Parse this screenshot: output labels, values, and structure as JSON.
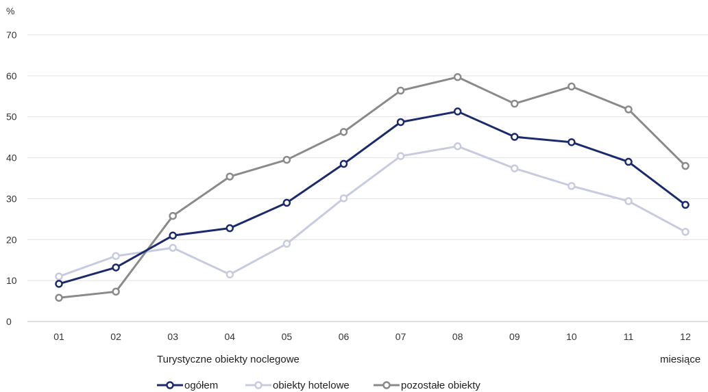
{
  "chart_data": {
    "type": "line",
    "y_unit": "%",
    "ylim": [
      0,
      70
    ],
    "yticks": [
      "0",
      "10",
      "20",
      "30",
      "40",
      "50",
      "60",
      "70"
    ],
    "categories": [
      "01",
      "02",
      "03",
      "04",
      "05",
      "06",
      "07",
      "08",
      "09",
      "10",
      "11",
      "12"
    ],
    "x_caption": "Turystyczne obiekty noclegowe",
    "x_unit": "miesiące",
    "grid": true,
    "legend_position": "bottom",
    "series": [
      {
        "name": "ogółem",
        "color": "#1b2a6b",
        "values": [
          9.2,
          13.2,
          21.0,
          22.8,
          29.0,
          38.5,
          48.7,
          51.3,
          45.1,
          43.8,
          39.0,
          28.5
        ]
      },
      {
        "name": "obiekty hotelowe",
        "color": "#c7cbe0",
        "values": [
          11.0,
          16.0,
          18.0,
          11.5,
          19.0,
          30.1,
          40.4,
          42.8,
          37.4,
          33.1,
          29.4,
          21.9
        ]
      },
      {
        "name": "pozostałe obiekty",
        "color": "#8a8a8a",
        "values": [
          5.8,
          7.3,
          25.8,
          35.4,
          39.5,
          46.3,
          56.4,
          59.7,
          53.2,
          57.4,
          51.8,
          38.0
        ]
      }
    ]
  }
}
